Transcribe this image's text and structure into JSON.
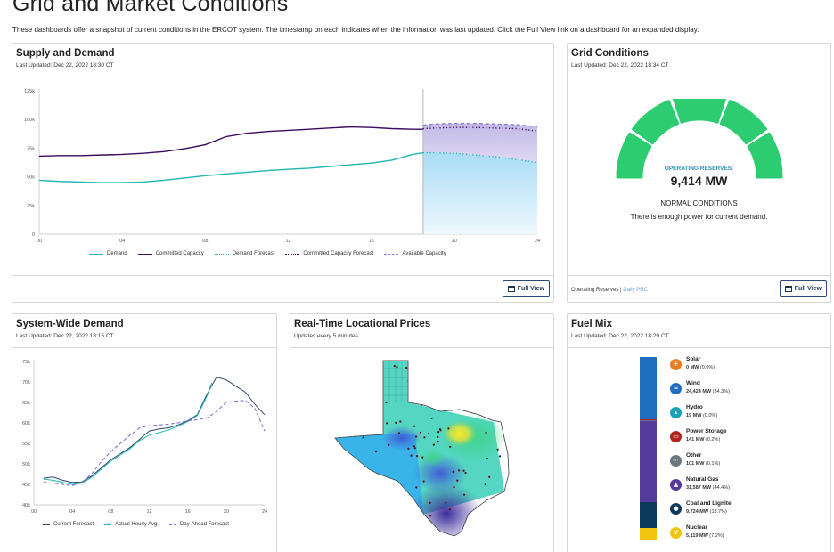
{
  "page": {
    "title": "Grid and Market Conditions",
    "description": "These dashboards offer a snapshot of current conditions in the ERCOT system. The timestamp on each indicates when the information was last updated. Click the Full View link on a dashboard for an expanded display."
  },
  "full_view_label": "Full View",
  "supply_demand": {
    "title": "Supply and Demand",
    "updated": "Last Updated: Dec 22, 2022 18:30 CT",
    "legend": [
      "Demand",
      "Committed Capacity",
      "Demand Forecast",
      "Committed Capacity Forecast",
      "Available Capacity"
    ]
  },
  "grid_conditions": {
    "title": "Grid Conditions",
    "updated": "Last Updated: Dec 22, 2022 18:34 CT",
    "reserves_label": "OPERATING RESERVES:",
    "reserves_value": "9,414 MW",
    "status": "NORMAL CONDITIONS",
    "message": "There is enough power for current demand.",
    "footer_text": "Operating Reserves",
    "footer_sep": " | ",
    "footer_link": "Daily PRC",
    "colors": {
      "gauge": "#2ecc71"
    }
  },
  "system_demand": {
    "title": "System-Wide Demand",
    "updated": "Last Updated: Dec 22, 2022 18:15 CT",
    "legend": [
      "Current Forecast",
      "Actual Hourly Avg.",
      "Day-Ahead Forecast"
    ]
  },
  "locational_prices": {
    "title": "Real-Time Locational Prices",
    "updated": "Updates every 5 minutes"
  },
  "fuel_mix": {
    "title": "Fuel Mix",
    "updated": "Last Updated: Dec 22, 2022 18:29 CT",
    "items": [
      {
        "name": "Solar",
        "mw": "0 MW",
        "pct": "(0.0%)",
        "icon": "sun-icon",
        "color": "#e67e22",
        "share": 0.0
      },
      {
        "name": "Wind",
        "mw": "24,424 MW",
        "pct": "(34.3%)",
        "icon": "wind-icon",
        "color": "#1f6fbf",
        "share": 34.3
      },
      {
        "name": "Hydro",
        "mw": "19 MW",
        "pct": "(0.0%)",
        "icon": "water-drop-icon",
        "color": "#17a2b8",
        "share": 0.0
      },
      {
        "name": "Power Storage",
        "mw": "141 MW",
        "pct": "(0.2%)",
        "icon": "battery-icon",
        "color": "#b22222",
        "share": 0.2
      },
      {
        "name": "Other",
        "mw": "101 MW",
        "pct": "(0.1%)",
        "icon": "dots-icon",
        "color": "#6c757d",
        "share": 0.1
      },
      {
        "name": "Natural Gas",
        "mw": "31,587 MW",
        "pct": "(44.4%)",
        "icon": "flame-icon",
        "color": "#553c9a",
        "share": 44.4
      },
      {
        "name": "Coal and Lignite",
        "mw": "9,724 MW",
        "pct": "(13.7%)",
        "icon": "coal-icon",
        "color": "#0b3a5c",
        "share": 13.7
      },
      {
        "name": "Nuclear",
        "mw": "5,119 MW",
        "pct": "(7.2%)",
        "icon": "nuclear-icon",
        "color": "#f1c40f",
        "share": 7.2
      }
    ]
  },
  "chart_data": [
    {
      "type": "line",
      "title": "Supply and Demand",
      "x_ticks": [
        "00",
        "04",
        "08",
        "12",
        "16",
        "20",
        "24"
      ],
      "y_ticks": [
        "0",
        "25k",
        "50k",
        "75k",
        "100k",
        "125k"
      ],
      "xlim": [
        0,
        24
      ],
      "ylim": [
        0,
        125000
      ],
      "current_hour": 18.5,
      "series": [
        {
          "name": "Demand",
          "color": "#1fb5b0",
          "x": [
            0,
            1,
            2,
            3,
            4,
            5,
            6,
            7,
            8,
            9,
            10,
            11,
            12,
            13,
            14,
            15,
            16,
            17,
            18,
            18.5
          ],
          "y": [
            47000,
            46000,
            45500,
            45000,
            45000,
            45500,
            47000,
            49000,
            51000,
            52500,
            54000,
            55500,
            56500,
            57500,
            59000,
            60500,
            62000,
            64500,
            69500,
            71000
          ]
        },
        {
          "name": "Committed Capacity",
          "color": "#3b0a5e",
          "x": [
            0,
            1,
            2,
            3,
            4,
            5,
            6,
            7,
            8,
            9,
            10,
            11,
            12,
            13,
            14,
            15,
            16,
            17,
            18,
            18.5
          ],
          "y": [
            68000,
            68500,
            68500,
            69000,
            69500,
            70500,
            72000,
            74500,
            78000,
            85000,
            88000,
            89500,
            90500,
            91500,
            92500,
            93500,
            93000,
            92000,
            91500,
            91500
          ]
        },
        {
          "name": "Demand Forecast",
          "color": "#1fb5b0",
          "x": [
            18.5,
            19,
            20,
            21,
            22,
            23,
            24
          ],
          "y": [
            71000,
            71000,
            70500,
            69000,
            67500,
            65000,
            62500
          ]
        },
        {
          "name": "Committed Capacity Forecast",
          "color": "#3b0a5e",
          "x": [
            18.5,
            19,
            20,
            21,
            22,
            23,
            24
          ],
          "y": [
            92000,
            92500,
            93000,
            93000,
            92500,
            92000,
            90000
          ]
        },
        {
          "name": "Available Capacity",
          "color": "#8c7fd1",
          "x": [
            18.5,
            19,
            20,
            21,
            22,
            23,
            24
          ],
          "y": [
            95000,
            96000,
            96500,
            96500,
            96000,
            95500,
            93500
          ]
        }
      ]
    },
    {
      "type": "line",
      "title": "System-Wide Demand",
      "x_ticks": [
        "00",
        "04",
        "08",
        "12",
        "16",
        "20",
        "24"
      ],
      "y_ticks": [
        "40k",
        "45k",
        "50k",
        "55k",
        "60k",
        "65k",
        "70k",
        "75k"
      ],
      "xlim": [
        0,
        24
      ],
      "ylim": [
        40000,
        75000
      ],
      "series": [
        {
          "name": "Current Forecast",
          "color": "#2d4a73",
          "dash": false,
          "x": [
            1,
            2,
            3,
            4,
            5,
            6,
            7,
            8,
            9,
            10,
            11,
            12,
            13,
            14,
            15,
            16,
            17,
            18,
            19,
            20,
            21,
            22,
            23,
            24
          ],
          "y": [
            46500,
            46800,
            46000,
            45500,
            45600,
            47000,
            49000,
            51000,
            52500,
            54000,
            56000,
            58000,
            58500,
            58800,
            59500,
            60500,
            62000,
            67000,
            71200,
            70500,
            69000,
            67500,
            64500,
            62000
          ]
        },
        {
          "name": "Actual Hourly Avg.",
          "color": "#1fb5b0",
          "dash": false,
          "x": [
            1,
            2,
            3,
            4,
            5,
            6,
            7,
            8,
            9,
            10,
            11,
            12,
            13,
            14,
            15,
            16,
            17,
            18,
            18.5
          ],
          "y": [
            46300,
            46000,
            45500,
            45000,
            45300,
            46700,
            48700,
            50700,
            52200,
            53700,
            55700,
            57000,
            57600,
            58300,
            59200,
            60300,
            61800,
            66500,
            69800
          ]
        },
        {
          "name": "Day-Ahead Forecast",
          "color": "#7b68c8",
          "dash": true,
          "x": [
            1,
            2,
            3,
            4,
            5,
            6,
            7,
            8,
            9,
            10,
            11,
            12,
            13,
            14,
            15,
            16,
            17,
            18,
            19,
            20,
            21,
            22,
            23,
            24
          ],
          "y": [
            45500,
            45300,
            45000,
            44700,
            45500,
            47500,
            50500,
            53000,
            55000,
            57000,
            58800,
            59300,
            59500,
            59700,
            60000,
            60500,
            60800,
            61200,
            62800,
            65000,
            65300,
            65500,
            63500,
            58000
          ]
        }
      ]
    }
  ]
}
